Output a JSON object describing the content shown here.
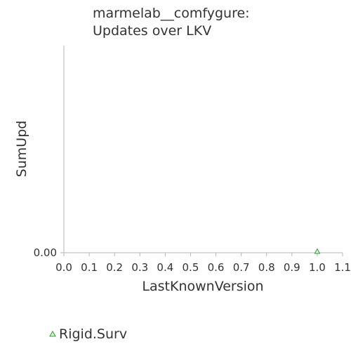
{
  "chart_data": {
    "type": "scatter",
    "title_lines": [
      "marmelab__comfygure:",
      "Updates over LKV"
    ],
    "xlabel": "LastKnownVersion",
    "ylabel": "SumUpd",
    "xlim": [
      0.0,
      1.1
    ],
    "ylim": [
      0.0,
      1.0
    ],
    "x_ticks": [
      "0.0",
      "0.1",
      "0.2",
      "0.3",
      "0.4",
      "0.5",
      "0.6",
      "0.7",
      "0.8",
      "0.9",
      "1.0",
      "1.1"
    ],
    "y_ticks": [
      "0.00"
    ],
    "grid": false,
    "legend_position": "bottom-left",
    "series": [
      {
        "name": "Rigid.Surv",
        "color": "#2ca02c",
        "marker": "triangle",
        "points": [
          {
            "x": 1.0,
            "y": 0.0
          }
        ]
      }
    ]
  }
}
